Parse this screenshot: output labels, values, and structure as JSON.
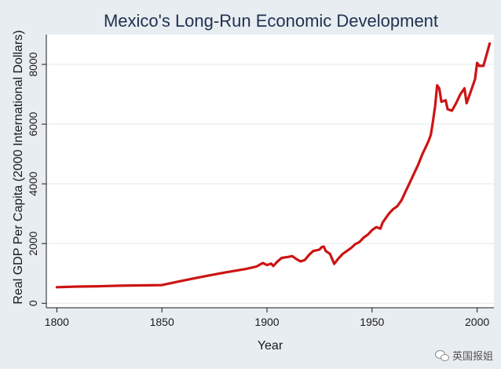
{
  "chart_data": {
    "type": "line",
    "title": "Mexico's Long-Run Economic Development",
    "xlabel": "Year",
    "ylabel": "Real GDP Per Capita (2000 International Dollars)",
    "xlim": [
      1795,
      2008
    ],
    "ylim": [
      -150,
      9000
    ],
    "x_ticks": [
      1800,
      1850,
      1900,
      1950,
      2000
    ],
    "y_ticks": [
      0,
      2000,
      4000,
      6000,
      8000
    ],
    "x_tick_labels": [
      "1800",
      "1850",
      "1900",
      "1950",
      "2000"
    ],
    "y_tick_labels": [
      "0",
      "2000",
      "4000",
      "6000",
      "8000"
    ],
    "grid": true,
    "series": [
      {
        "color": "#cc1414",
        "points": [
          [
            1800,
            540
          ],
          [
            1810,
            560
          ],
          [
            1820,
            570
          ],
          [
            1830,
            590
          ],
          [
            1840,
            600
          ],
          [
            1850,
            610
          ],
          [
            1860,
            760
          ],
          [
            1870,
            900
          ],
          [
            1880,
            1030
          ],
          [
            1890,
            1150
          ],
          [
            1895,
            1230
          ],
          [
            1898,
            1350
          ],
          [
            1900,
            1280
          ],
          [
            1902,
            1330
          ],
          [
            1903,
            1250
          ],
          [
            1905,
            1400
          ],
          [
            1907,
            1520
          ],
          [
            1910,
            1550
          ],
          [
            1912,
            1580
          ],
          [
            1914,
            1480
          ],
          [
            1916,
            1400
          ],
          [
            1918,
            1450
          ],
          [
            1920,
            1620
          ],
          [
            1922,
            1750
          ],
          [
            1924,
            1780
          ],
          [
            1925,
            1800
          ],
          [
            1926,
            1880
          ],
          [
            1927,
            1900
          ],
          [
            1928,
            1750
          ],
          [
            1930,
            1650
          ],
          [
            1932,
            1320
          ],
          [
            1934,
            1500
          ],
          [
            1936,
            1650
          ],
          [
            1938,
            1750
          ],
          [
            1940,
            1850
          ],
          [
            1942,
            1980
          ],
          [
            1944,
            2050
          ],
          [
            1946,
            2200
          ],
          [
            1948,
            2300
          ],
          [
            1950,
            2450
          ],
          [
            1952,
            2550
          ],
          [
            1954,
            2500
          ],
          [
            1955,
            2700
          ],
          [
            1957,
            2900
          ],
          [
            1958,
            3000
          ],
          [
            1960,
            3150
          ],
          [
            1962,
            3250
          ],
          [
            1964,
            3450
          ],
          [
            1966,
            3750
          ],
          [
            1968,
            4050
          ],
          [
            1970,
            4350
          ],
          [
            1972,
            4650
          ],
          [
            1974,
            5000
          ],
          [
            1975,
            5150
          ],
          [
            1976,
            5300
          ],
          [
            1977,
            5450
          ],
          [
            1978,
            5650
          ],
          [
            1979,
            6100
          ],
          [
            1980,
            6600
          ],
          [
            1981,
            7300
          ],
          [
            1982,
            7200
          ],
          [
            1983,
            6750
          ],
          [
            1985,
            6800
          ],
          [
            1986,
            6500
          ],
          [
            1988,
            6450
          ],
          [
            1990,
            6700
          ],
          [
            1992,
            7000
          ],
          [
            1994,
            7200
          ],
          [
            1995,
            6700
          ],
          [
            1997,
            7100
          ],
          [
            1999,
            7500
          ],
          [
            2000,
            8050
          ],
          [
            2001,
            7950
          ],
          [
            2003,
            7950
          ],
          [
            2004,
            8200
          ],
          [
            2006,
            8700
          ]
        ]
      }
    ]
  },
  "watermark": {
    "text": "英国报姐",
    "icon": "chat-bubbles-icon"
  }
}
